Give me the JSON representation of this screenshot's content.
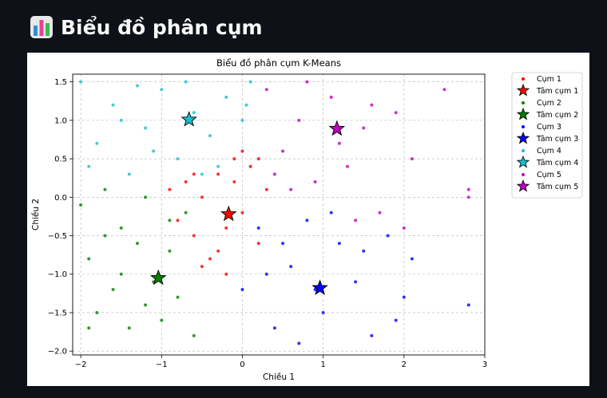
{
  "page": {
    "title": "Biểu đồ phân cụm",
    "icon": "bar-chart-icon"
  },
  "chart_data": {
    "type": "scatter",
    "title": "Biểu đồ phân cụm K-Means",
    "xlabel": "Chiều 1",
    "ylabel": "Chiều 2",
    "xlim": [
      -2.1,
      3.0
    ],
    "ylim": [
      -2.05,
      1.6
    ],
    "xticks": [
      "−2",
      "−1",
      "0",
      "1",
      "2",
      "3"
    ],
    "xtick_values": [
      -2,
      -1,
      0,
      1,
      2,
      3
    ],
    "yticks": [
      "−2.0",
      "−1.5",
      "−1.0",
      "−0.5",
      "0.0",
      "0.5",
      "1.0",
      "1.5"
    ],
    "ytick_values": [
      -2.0,
      -1.5,
      -1.0,
      -0.5,
      0.0,
      0.5,
      1.0,
      1.5
    ],
    "grid": true,
    "legend_position": "right",
    "series": [
      {
        "name": "Cụm 1",
        "color": "#ff0000",
        "x_range": [
          -1.1,
          0.35
        ],
        "y_range": [
          -1.1,
          0.65
        ],
        "points": [
          [
            -0.9,
            0.1
          ],
          [
            -0.8,
            -0.3
          ],
          [
            -0.7,
            0.2
          ],
          [
            -0.6,
            -0.5
          ],
          [
            -0.5,
            0.0
          ],
          [
            -0.4,
            -0.8
          ],
          [
            -0.3,
            0.3
          ],
          [
            -0.2,
            -0.4
          ],
          [
            -0.1,
            0.5
          ],
          [
            0.0,
            -0.2
          ],
          [
            0.1,
            0.4
          ],
          [
            0.2,
            -0.6
          ],
          [
            0.3,
            0.1
          ],
          [
            -0.2,
            -1.0
          ],
          [
            -0.1,
            0.2
          ],
          [
            0.0,
            0.6
          ],
          [
            -0.5,
            -0.9
          ],
          [
            -0.6,
            0.3
          ],
          [
            -0.3,
            -0.7
          ],
          [
            0.2,
            0.5
          ]
        ],
        "center": [
          -0.17,
          -0.22
        ],
        "center_label": "Tâm cụm 1"
      },
      {
        "name": "Cụm 2",
        "color": "#008000",
        "x_range": [
          -2.0,
          -0.55
        ],
        "y_range": [
          -1.85,
          0.2
        ],
        "points": [
          [
            -2.0,
            -0.1
          ],
          [
            -1.9,
            -0.8
          ],
          [
            -1.8,
            -1.5
          ],
          [
            -1.7,
            0.1
          ],
          [
            -1.6,
            -1.2
          ],
          [
            -1.5,
            -0.4
          ],
          [
            -1.4,
            -1.7
          ],
          [
            -1.3,
            -0.6
          ],
          [
            -1.2,
            0.0
          ],
          [
            -1.1,
            -1.1
          ],
          [
            -1.0,
            -1.6
          ],
          [
            -0.9,
            -0.7
          ],
          [
            -0.8,
            -1.3
          ],
          [
            -0.7,
            -0.2
          ],
          [
            -0.6,
            -1.8
          ],
          [
            -1.9,
            -1.7
          ],
          [
            -1.5,
            -1.0
          ],
          [
            -1.2,
            -1.4
          ],
          [
            -0.9,
            -0.3
          ],
          [
            -1.7,
            -0.5
          ]
        ],
        "center": [
          -1.04,
          -1.05
        ],
        "center_label": "Tâm cụm 2"
      },
      {
        "name": "Cụm 3",
        "color": "#0000ff",
        "x_range": [
          0.0,
          2.8
        ],
        "y_range": [
          -1.9,
          -0.2
        ],
        "points": [
          [
            0.0,
            -1.2
          ],
          [
            0.2,
            -0.4
          ],
          [
            0.4,
            -1.7
          ],
          [
            0.6,
            -0.9
          ],
          [
            0.8,
            -0.3
          ],
          [
            1.0,
            -1.5
          ],
          [
            1.2,
            -0.6
          ],
          [
            1.4,
            -1.1
          ],
          [
            1.6,
            -1.8
          ],
          [
            1.8,
            -0.5
          ],
          [
            2.0,
            -1.3
          ],
          [
            2.1,
            -0.8
          ],
          [
            2.8,
            -1.4
          ],
          [
            0.3,
            -1.0
          ],
          [
            0.7,
            -1.9
          ],
          [
            1.1,
            -0.2
          ],
          [
            1.5,
            -0.7
          ],
          [
            1.9,
            -1.6
          ],
          [
            0.5,
            -0.6
          ],
          [
            0.9,
            -1.2
          ]
        ],
        "center": [
          0.96,
          -1.18
        ],
        "center_label": "Tâm cụm 3"
      },
      {
        "name": "Cụm 4",
        "color": "#17becf",
        "x_range": [
          -2.0,
          0.15
        ],
        "y_range": [
          0.2,
          1.5
        ],
        "points": [
          [
            -2.0,
            1.5
          ],
          [
            -1.8,
            0.7
          ],
          [
            -1.6,
            1.2
          ],
          [
            -1.4,
            0.3
          ],
          [
            -1.2,
            0.9
          ],
          [
            -1.0,
            1.4
          ],
          [
            -0.8,
            0.5
          ],
          [
            -0.6,
            1.1
          ],
          [
            -0.4,
            0.8
          ],
          [
            -0.2,
            1.3
          ],
          [
            0.0,
            1.0
          ],
          [
            0.1,
            1.5
          ],
          [
            -1.9,
            0.4
          ],
          [
            -1.5,
            1.0
          ],
          [
            -1.1,
            0.6
          ],
          [
            -0.7,
            1.5
          ],
          [
            -0.3,
            0.4
          ],
          [
            0.05,
            1.2
          ],
          [
            -1.3,
            1.45
          ],
          [
            -0.5,
            0.3
          ]
        ],
        "center": [
          -0.66,
          1.01
        ],
        "center_label": "Tâm cụm 4"
      },
      {
        "name": "Cụm 5",
        "color": "#bf00bf",
        "x_range": [
          0.3,
          2.8
        ],
        "y_range": [
          -0.5,
          1.5
        ],
        "points": [
          [
            0.3,
            1.4
          ],
          [
            0.5,
            0.6
          ],
          [
            0.7,
            1.0
          ],
          [
            0.9,
            0.2
          ],
          [
            1.1,
            1.3
          ],
          [
            1.3,
            0.4
          ],
          [
            1.5,
            0.9
          ],
          [
            1.7,
            -0.2
          ],
          [
            1.9,
            1.1
          ],
          [
            2.1,
            0.5
          ],
          [
            2.5,
            1.4
          ],
          [
            2.8,
            0.0
          ],
          [
            0.4,
            0.3
          ],
          [
            0.8,
            1.5
          ],
          [
            1.2,
            0.7
          ],
          [
            1.6,
            1.2
          ],
          [
            2.0,
            -0.4
          ],
          [
            2.8,
            0.1
          ],
          [
            0.6,
            0.1
          ],
          [
            1.4,
            -0.3
          ]
        ],
        "center": [
          1.17,
          0.89
        ],
        "center_label": "Tâm cụm 5"
      }
    ]
  }
}
